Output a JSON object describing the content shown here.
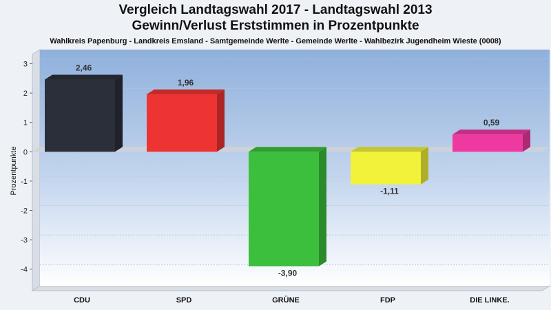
{
  "header": {
    "title_line1": "Vergleich Landtagswahl 2017 - Landtagswahl 2013",
    "title_line2": "Gewinn/Verlust Erststimmen in Prozentpunkte",
    "subtitle": "Wahlkreis Papenburg - Landkreis Emsland - Samtgemeinde Werlte - Gemeinde Werlte - Wahlbezirk Jugendheim Wieste (0008)"
  },
  "chart_data": {
    "type": "bar",
    "title": "Vergleich Landtagswahl 2017 - Landtagswahl 2013",
    "subtitle": "Gewinn/Verlust Erststimmen in Prozentpunkte",
    "xlabel": "",
    "ylabel": "Prozentpunkte",
    "ylim": [
      -4.5,
      3.2
    ],
    "yticks": [
      3,
      2,
      1,
      0,
      -1,
      -2,
      -3,
      -4
    ],
    "grid": true,
    "categories": [
      "CDU",
      "SPD",
      "GRÜNE",
      "FDP",
      "DIE LINKE."
    ],
    "values": [
      2.46,
      1.96,
      -3.9,
      -1.11,
      0.59
    ],
    "value_labels": [
      "2,46",
      "1,96",
      "-3,90",
      "-1,11",
      "0,59"
    ],
    "colors": [
      "#2b2f3a",
      "#ee3333",
      "#3cbf3c",
      "#f2f23a",
      "#ee3aa0"
    ]
  }
}
